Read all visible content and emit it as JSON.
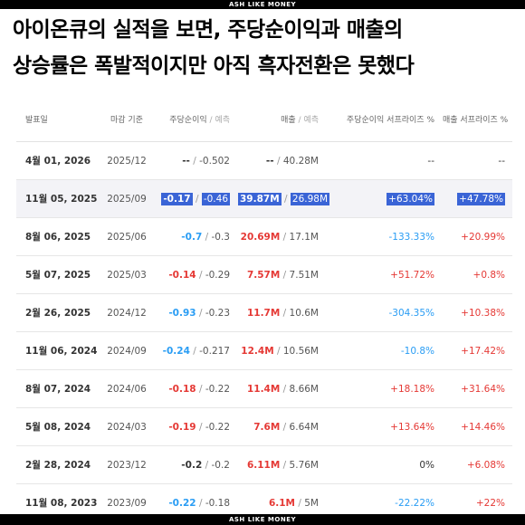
{
  "banner_top": "ASH LIKE MONEY",
  "banner_bottom": "ASH LIKE MONEY",
  "headline": {
    "line1": "아이온큐의 실적을 보면, 주당순이익과 매출의",
    "line2": "상승률은 폭발적이지만 아직 흑자전환은 못했다"
  },
  "table": {
    "headers": {
      "date": "발표일",
      "period": "마감 기준",
      "eps": "주당순이익",
      "eps_forecast": "예측",
      "revenue": "매출",
      "revenue_forecast": "예측",
      "eps_surprise": "주당순이익 서프라이즈 %",
      "revenue_surprise": "매출 서프라이즈 %"
    },
    "rows": [
      {
        "date": "4월 01, 2026",
        "period": "2025/12",
        "eps": "--",
        "eps_forecast": "-0.502",
        "revenue": "--",
        "revenue_forecast": "40.28M",
        "eps_surprise": "--",
        "revenue_surprise": "--"
      },
      {
        "date": "11월 05, 2025",
        "period": "2025/09",
        "eps": "-0.17",
        "eps_forecast": "-0.46",
        "revenue": "39.87M",
        "revenue_forecast": "26.98M",
        "eps_surprise": "+63.04%",
        "revenue_surprise": "+47.78%"
      },
      {
        "date": "8월 06, 2025",
        "period": "2025/06",
        "eps": "-0.7",
        "eps_forecast": "-0.3",
        "revenue": "20.69M",
        "revenue_forecast": "17.1M",
        "eps_surprise": "-133.33%",
        "revenue_surprise": "+20.99%"
      },
      {
        "date": "5월 07, 2025",
        "period": "2025/03",
        "eps": "-0.14",
        "eps_forecast": "-0.29",
        "revenue": "7.57M",
        "revenue_forecast": "7.51M",
        "eps_surprise": "+51.72%",
        "revenue_surprise": "+0.8%"
      },
      {
        "date": "2월 26, 2025",
        "period": "2024/12",
        "eps": "-0.93",
        "eps_forecast": "-0.23",
        "revenue": "11.7M",
        "revenue_forecast": "10.6M",
        "eps_surprise": "-304.35%",
        "revenue_surprise": "+10.38%"
      },
      {
        "date": "11월 06, 2024",
        "period": "2024/09",
        "eps": "-0.24",
        "eps_forecast": "-0.217",
        "revenue": "12.4M",
        "revenue_forecast": "10.56M",
        "eps_surprise": "-10.8%",
        "revenue_surprise": "+17.42%"
      },
      {
        "date": "8월 07, 2024",
        "period": "2024/06",
        "eps": "-0.18",
        "eps_forecast": "-0.22",
        "revenue": "11.4M",
        "revenue_forecast": "8.66M",
        "eps_surprise": "+18.18%",
        "revenue_surprise": "+31.64%"
      },
      {
        "date": "5월 08, 2024",
        "period": "2024/03",
        "eps": "-0.19",
        "eps_forecast": "-0.22",
        "revenue": "7.6M",
        "revenue_forecast": "6.64M",
        "eps_surprise": "+13.64%",
        "revenue_surprise": "+14.46%"
      },
      {
        "date": "2월 28, 2024",
        "period": "2023/12",
        "eps": "-0.2",
        "eps_forecast": "-0.2",
        "revenue": "6.11M",
        "revenue_forecast": "5.76M",
        "eps_surprise": "0%",
        "revenue_surprise": "+6.08%"
      },
      {
        "date": "11월 08, 2023",
        "period": "2023/09",
        "eps": "-0.22",
        "eps_forecast": "-0.18",
        "revenue": "6.1M",
        "revenue_forecast": "5M",
        "eps_surprise": "-22.22%",
        "revenue_surprise": "+22%"
      }
    ]
  },
  "colors": {
    "positive": "#e53935",
    "negative": "#2a9df4",
    "highlight": "#3a64d6"
  }
}
